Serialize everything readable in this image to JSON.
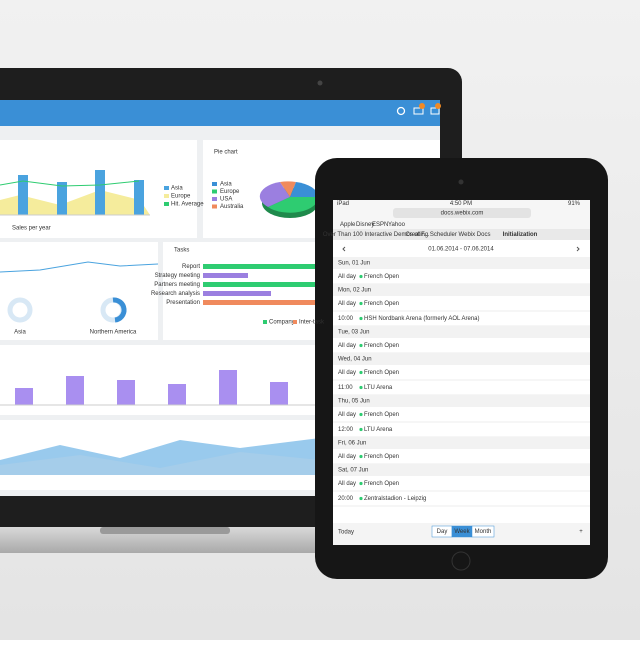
{
  "laptop": {
    "pie_panel": {
      "title": "Pie chart",
      "legend": [
        "Asia",
        "Europe",
        "USA",
        "Australia"
      ]
    },
    "bar_panel": {
      "caption": "Sales per year",
      "legend": [
        "Asia",
        "Europe",
        "Hit. Average"
      ]
    },
    "donuts": [
      "Asia",
      "Northern America"
    ],
    "tasks_panel": {
      "title": "Tasks",
      "tasks": [
        "Report",
        "Strategy meeting",
        "Partners meeting",
        "Research analysis",
        "Presentation"
      ],
      "legend": [
        "Company",
        "Inter-task"
      ]
    }
  },
  "ipad": {
    "status": {
      "device": "iPad",
      "time": "4:50 PM",
      "battery": "91%"
    },
    "url": "docs.webix.com",
    "bookmarks": [
      "Apple",
      "Disney",
      "ESPN",
      "Yahoo"
    ],
    "tabs": [
      "Over Than 100 Interactive Demos of F...",
      "Creating Scheduler Webix Docs",
      "Initialization"
    ],
    "date_range": "01.06.2014 - 07.06.2014",
    "days": [
      {
        "label": "Sun, 01 Jun",
        "events": [
          {
            "time": "All day",
            "title": "French Open"
          }
        ]
      },
      {
        "label": "Mon, 02 Jun",
        "events": [
          {
            "time": "All day",
            "title": "French Open"
          },
          {
            "time": "10:00",
            "title": "HSH Nordbank Arena (formerly AOL Arena)"
          }
        ]
      },
      {
        "label": "Tue, 03 Jun",
        "events": [
          {
            "time": "All day",
            "title": "French Open"
          }
        ]
      },
      {
        "label": "Wed, 04 Jun",
        "events": [
          {
            "time": "All day",
            "title": "French Open"
          },
          {
            "time": "11:00",
            "title": "LTU Arena"
          }
        ]
      },
      {
        "label": "Thu, 05 Jun",
        "events": [
          {
            "time": "All day",
            "title": "French Open"
          },
          {
            "time": "12:00",
            "title": "LTU Arena"
          }
        ]
      },
      {
        "label": "Fri, 06 Jun",
        "events": [
          {
            "time": "All day",
            "title": "French Open"
          }
        ]
      },
      {
        "label": "Sat, 07 Jun",
        "events": [
          {
            "time": "All day",
            "title": "French Open"
          },
          {
            "time": "20:00",
            "title": "Zentralstadion - Leipzig"
          }
        ]
      }
    ],
    "footer": {
      "today": "Today",
      "views": [
        "Day",
        "Week",
        "Month"
      ],
      "add": "+"
    }
  }
}
